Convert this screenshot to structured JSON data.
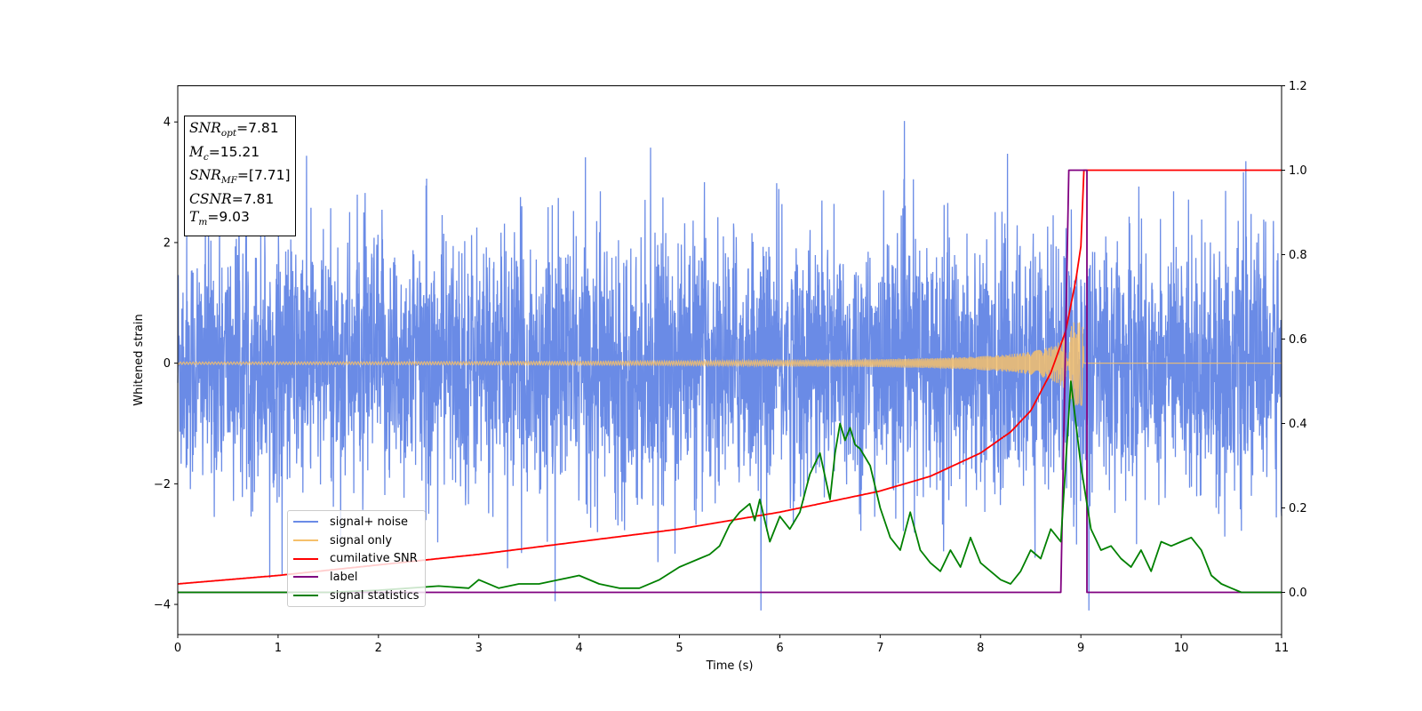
{
  "chart_data": {
    "type": "line",
    "xlabel": "Time (s)",
    "ylabel": "Whitened strain",
    "xlim": [
      0,
      11
    ],
    "ylim": [
      -4.5,
      4.6
    ],
    "y2lim": [
      -0.1,
      1.2
    ],
    "x_ticks": [
      "0",
      "1",
      "2",
      "3",
      "4",
      "5",
      "6",
      "7",
      "8",
      "9",
      "10",
      "11"
    ],
    "y_ticks": [
      "4",
      "2",
      "0",
      "−2",
      "−4"
    ],
    "y2_ticks": [
      "1.2",
      "1.0",
      "0.8",
      "0.6",
      "0.4",
      "0.2",
      "0.0"
    ],
    "grid": false,
    "legend_position": "lower-left",
    "annotation": {
      "snr_opt": "7.81",
      "mc": "15.21",
      "snr_mf": "[7.71]",
      "csnr": "7.81",
      "tm": "9.03"
    },
    "series": [
      {
        "name": "signal+ noise",
        "color": "#6a8be6",
        "axis": "left",
        "description_values": "Gaussian-like noise, x 0 to 11 s, y roughly ±2 with spikes to about ±4",
        "x_range": [
          0,
          11
        ],
        "y_envelope": [
          -4.1,
          4.2
        ]
      },
      {
        "name": "signal only",
        "color": "#f5c06b",
        "axis": "left",
        "x_range": [
          0,
          9.03
        ],
        "y_envelope_start": 0.02,
        "y_envelope_end": 0.7
      },
      {
        "name": "cumilative SNR",
        "color": "#ff0000",
        "axis": "right",
        "x": [
          0,
          1,
          2,
          3,
          4,
          5,
          6,
          7,
          7.5,
          8,
          8.3,
          8.5,
          8.7,
          8.85,
          8.95,
          9.0,
          9.03,
          11
        ],
        "y": [
          0.02,
          0.04,
          0.065,
          0.09,
          0.12,
          0.15,
          0.19,
          0.24,
          0.275,
          0.33,
          0.38,
          0.43,
          0.52,
          0.62,
          0.74,
          0.82,
          1.0,
          1.0
        ]
      },
      {
        "name": "label",
        "color": "#800080",
        "axis": "right",
        "x": [
          0,
          8.8,
          8.88,
          9.06,
          9.06,
          11
        ],
        "y": [
          0,
          0,
          1,
          1,
          0,
          0
        ]
      },
      {
        "name": "signal statistics",
        "color": "#008000",
        "axis": "right",
        "x": [
          0,
          0.5,
          1,
          1.5,
          2,
          2.3,
          2.6,
          2.9,
          3.0,
          3.2,
          3.4,
          3.6,
          3.8,
          4.0,
          4.2,
          4.4,
          4.6,
          4.8,
          5.0,
          5.2,
          5.3,
          5.4,
          5.5,
          5.6,
          5.7,
          5.75,
          5.8,
          5.9,
          6.0,
          6.1,
          6.2,
          6.3,
          6.4,
          6.5,
          6.55,
          6.6,
          6.65,
          6.7,
          6.75,
          6.8,
          6.9,
          7.0,
          7.1,
          7.2,
          7.3,
          7.4,
          7.5,
          7.6,
          7.7,
          7.8,
          7.9,
          8.0,
          8.1,
          8.2,
          8.3,
          8.4,
          8.5,
          8.6,
          8.7,
          8.8,
          8.9,
          9.0,
          9.1,
          9.2,
          9.3,
          9.4,
          9.5,
          9.6,
          9.7,
          9.8,
          9.9,
          10.0,
          10.1,
          10.2,
          10.3,
          10.4,
          10.5,
          10.6,
          10.7,
          10.8,
          11
        ],
        "y": [
          0.0,
          0.0,
          0.0,
          0.0,
          0.005,
          0.01,
          0.015,
          0.01,
          0.03,
          0.01,
          0.02,
          0.02,
          0.03,
          0.04,
          0.02,
          0.01,
          0.01,
          0.03,
          0.06,
          0.08,
          0.09,
          0.11,
          0.16,
          0.19,
          0.21,
          0.17,
          0.22,
          0.12,
          0.18,
          0.15,
          0.19,
          0.28,
          0.33,
          0.22,
          0.33,
          0.4,
          0.36,
          0.39,
          0.35,
          0.34,
          0.3,
          0.2,
          0.13,
          0.1,
          0.19,
          0.1,
          0.07,
          0.05,
          0.1,
          0.06,
          0.13,
          0.07,
          0.05,
          0.03,
          0.02,
          0.05,
          0.1,
          0.08,
          0.15,
          0.12,
          0.5,
          0.3,
          0.15,
          0.1,
          0.11,
          0.08,
          0.06,
          0.1,
          0.05,
          0.12,
          0.11,
          0.12,
          0.13,
          0.1,
          0.04,
          0.02,
          0.01,
          0.0,
          0.0,
          0.0,
          0.0
        ]
      }
    ]
  }
}
